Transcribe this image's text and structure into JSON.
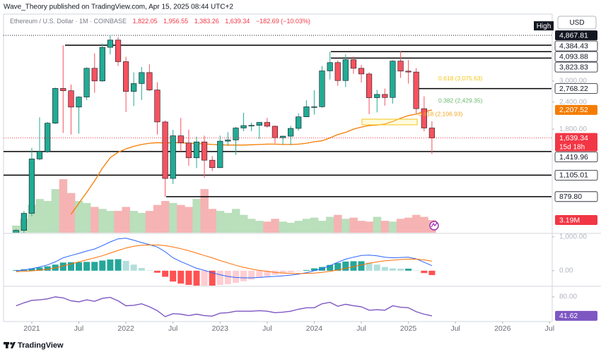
{
  "header": {
    "publisher": "Wave_Theory published on TradingView.com, Apr 15, 2025 08:44 UTC+2"
  },
  "footer": {
    "brand": "TradingView"
  },
  "chart_data": [
    {
      "type": "candlestick",
      "title": "Ethereum / U.S. Dollar · 1M · COINBASE",
      "legend": [
        "1,822.05",
        "1,956.55",
        "1,383.26",
        "1,639.34",
        "−182.69 (−10.03%)"
      ],
      "currency": "USD",
      "log": true,
      "x": [
        2020.833,
        2020.917,
        2021,
        2021.083,
        2021.167,
        2021.25,
        2021.333,
        2021.417,
        2021.5,
        2021.583,
        2021.667,
        2021.75,
        2021.833,
        2021.917,
        2022,
        2022.083,
        2022.167,
        2022.25,
        2022.333,
        2022.417,
        2022.5,
        2022.583,
        2022.667,
        2022.75,
        2022.833,
        2022.917,
        2023,
        2023.083,
        2023.167,
        2023.25,
        2023.333,
        2023.417,
        2023.5,
        2023.583,
        2023.667,
        2023.75,
        2023.833,
        2023.917,
        2024,
        2024.083,
        2024.167,
        2024.25,
        2024.333,
        2024.417,
        2024.5,
        2024.583,
        2024.667,
        2024.75,
        2024.833,
        2024.917,
        2025,
        2025.083,
        2025.167,
        2025.25
      ],
      "xlim": [
        2020.7,
        2026.52
      ],
      "xticks": [
        2021,
        {
          "value": 2021.5,
          "label": "Jul"
        },
        2022,
        {
          "value": 2022.5,
          "label": "Jul"
        },
        2023,
        {
          "value": 2023.5,
          "label": "Jul"
        },
        2024,
        {
          "value": 2024.5,
          "label": "Jul"
        },
        2025,
        {
          "value": 2025.5,
          "label": "Jul"
        },
        2026,
        {
          "value": 2026.5,
          "label": "Jul"
        }
      ],
      "ylim": [
        600,
        6100
      ],
      "yticks": [
        {
          "value": 3000,
          "label": "3,000.00"
        },
        {
          "value": 2400,
          "label": "2,400.00"
        },
        {
          "value": 1800,
          "label": "1,800.00"
        }
      ],
      "up_color": "#22ab94",
      "down_color": "#f7525f",
      "open": [
        387,
        615,
        737,
        1312,
        1419,
        1918,
        2773,
        2706,
        2275,
        2531,
        3433,
        3001,
        4288,
        4631,
        3683,
        2687,
        2920,
        3281,
        2728,
        1943,
        1067,
        1678,
        1554,
        1328,
        1572,
        1295,
        1196,
        1585,
        1605,
        1822,
        1870,
        1874,
        1934,
        1857,
        1645,
        1671,
        1815,
        2051,
        2282,
        2283,
        3340,
        3647,
        3014,
        3762,
        3433,
        3232,
        2513,
        2602,
        2518,
        3705,
        3332,
        3300,
        2237,
        1822.05
      ],
      "high": [
        622,
        755,
        1476,
        2042,
        1944,
        2798,
        4380,
        2890,
        2552,
        3470,
        4030,
        4460,
        4867.81,
        4780,
        3880,
        3290,
        3480,
        3580,
        2960,
        1975,
        1786,
        2030,
        1790,
        1664,
        1680,
        1353,
        1680,
        1743,
        1843,
        2142,
        1930,
        1940,
        2030,
        1870,
        1680,
        1865,
        2130,
        2445,
        2720,
        3520,
        4093.88,
        3730,
        3977,
        3890,
        3560,
        3290,
        2730,
        2770,
        3740,
        4107,
        3745,
        3440,
        2550,
        1956.55
      ],
      "low": [
        374,
        540,
        714,
        1293,
        1400,
        1900,
        1730,
        1700,
        1718,
        2450,
        2650,
        2970,
        3980,
        3520,
        2160,
        2300,
        2450,
        2700,
        1700,
        879.8,
        1006,
        1422,
        1220,
        1191,
        1073,
        1153,
        1191,
        1510,
        1370,
        1760,
        1760,
        1620,
        1830,
        1550,
        1530,
        1520,
        1770,
        2050,
        2100,
        2260,
        3050,
        2850,
        2810,
        3240,
        2950,
        2110,
        2150,
        2310,
        2360,
        3100,
        2920,
        2125,
        1760,
        1383.26
      ],
      "close": [
        615,
        737,
        1312,
        1419,
        1918,
        2773,
        2706,
        2275,
        2531,
        3433,
        3001,
        4288,
        4631,
        3683,
        2687,
        2920,
        3281,
        2728,
        1943,
        1067,
        1678,
        1554,
        1328,
        1572,
        1295,
        1196,
        1585,
        1605,
        1822,
        1870,
        1874,
        1934,
        1857,
        1645,
        1671,
        1815,
        2051,
        2282,
        2283,
        3340,
        3647,
        3014,
        3762,
        3433,
        3232,
        2513,
        2602,
        2518,
        3705,
        3332,
        3300,
        2237,
        1822,
        1639.34
      ],
      "ema": {
        "color": "#f57c00",
        "values": [
          null,
          null,
          null,
          null,
          null,
          null,
          null,
          730,
          820,
          920,
          1040,
          1190,
          1330,
          1410,
          1460,
          1500,
          1530,
          1550,
          1560,
          1555,
          1560,
          1560,
          1550,
          1545,
          1540,
          1530,
          1525,
          1520,
          1520,
          1520,
          1525,
          1530,
          1535,
          1535,
          1530,
          1530,
          1535,
          1550,
          1575,
          1590,
          1640,
          1700,
          1740,
          1800,
          1840,
          1870,
          1880,
          1900,
          1950,
          2020,
          2080,
          2110,
          2160,
          2207.52
        ]
      },
      "volume": {
        "ylim": [
          0,
          16000000
        ],
        "up_color": "#b9dfbb",
        "down_color": "#f6b3b3",
        "values": [
          1800000,
          3500000,
          7000000,
          8500000,
          8000000,
          11000000,
          13500000,
          10000000,
          8000000,
          7500000,
          6500000,
          6000000,
          5500000,
          5500000,
          6500000,
          5500000,
          5000000,
          5500000,
          7000000,
          8000000,
          7500000,
          7000000,
          6500000,
          8500000,
          11000000,
          6000000,
          5500000,
          5000000,
          6000000,
          4500000,
          3500000,
          3000000,
          2800000,
          3500000,
          2800000,
          2500000,
          3000000,
          3500000,
          3800000,
          3000000,
          4000000,
          4500000,
          3500000,
          3800000,
          3000000,
          2800000,
          4000000,
          3000000,
          2800000,
          3500000,
          3800000,
          4500000,
          4000000,
          3190000
        ],
        "tag": {
          "value": 3190000,
          "label": "3.19M",
          "color": "#f23645"
        }
      },
      "levels": [
        {
          "value": 4867.81,
          "label": "4,867.81",
          "marker": "High"
        },
        {
          "value": 4384.43,
          "label": "4,384.43"
        },
        {
          "value": 4093.88,
          "label": "4,093.88"
        },
        {
          "value": 3823.83,
          "label": "3,823.83"
        },
        {
          "value": 2768.22,
          "label": "2,768.22"
        },
        {
          "value": 1419.96,
          "label": "1,419.96"
        },
        {
          "value": 1105.01,
          "label": "1,105.01"
        },
        {
          "value": 879.8,
          "label": "879.80"
        }
      ],
      "price_tags": [
        {
          "value": 2207.52,
          "label": "2,207.52",
          "color": "#f57c00"
        },
        {
          "value": 1639.34,
          "label": "1,639.34",
          "countdown": "15d 18h",
          "color": "#f23645"
        }
      ],
      "fib": [
        {
          "value": 3075.63,
          "label": "0.618 (3,075.63)",
          "color": "#f5c518"
        },
        {
          "value": 2429.35,
          "label": "0.382 (2,429.35)",
          "color": "#66bb6a"
        },
        {
          "value": 2106.93,
          "label": "0.618 (2,106.93)",
          "color": "#f5a623"
        }
      ]
    },
    {
      "type": "macd",
      "ylim": [
        -440,
        1080
      ],
      "yticks": [
        {
          "value": 1000,
          "label": "1,000.00"
        },
        {
          "value": 0,
          "label": "0.00"
        }
      ],
      "macd": {
        "color": "#2962ff",
        "values": [
          -10,
          20,
          60,
          110,
          170,
          260,
          380,
          450,
          510,
          580,
          640,
          740,
          850,
          940,
          960,
          900,
          830,
          770,
          700,
          560,
          380,
          270,
          170,
          70,
          10,
          -60,
          -120,
          -170,
          -200,
          -210,
          -210,
          -200,
          -180,
          -170,
          -150,
          -130,
          -100,
          -60,
          0,
          60,
          150,
          250,
          340,
          400,
          450,
          460,
          440,
          400,
          380,
          390,
          400,
          350,
          250,
          150
        ]
      },
      "signal": {
        "color": "#ff6d00",
        "values": [
          -30,
          -20,
          -5,
          15,
          40,
          80,
          140,
          200,
          260,
          320,
          380,
          440,
          520,
          600,
          670,
          720,
          750,
          760,
          760,
          740,
          700,
          650,
          590,
          520,
          450,
          380,
          300,
          230,
          160,
          100,
          50,
          10,
          -20,
          -50,
          -70,
          -80,
          -85,
          -80,
          -70,
          -50,
          -20,
          20,
          70,
          120,
          170,
          220,
          260,
          290,
          310,
          330,
          340,
          340,
          320,
          280
        ]
      },
      "histogram": {
        "colors": [
          "#26a69a",
          "#b2dfdb",
          "#ff5252",
          "#ffcdd2"
        ],
        "values": [
          20,
          40,
          65,
          95,
          130,
          180,
          240,
          250,
          250,
          260,
          260,
          300,
          330,
          340,
          290,
          180,
          80,
          10,
          -60,
          -180,
          -320,
          -380,
          -420,
          -450,
          -440,
          -440,
          -420,
          -400,
          -360,
          -310,
          -260,
          -210,
          -160,
          -120,
          -80,
          -50,
          -15,
          20,
          70,
          110,
          170,
          230,
          270,
          280,
          280,
          240,
          180,
          110,
          70,
          60,
          60,
          10,
          -70,
          -130
        ]
      }
    },
    {
      "type": "line",
      "ylim": [
        30,
        100
      ],
      "yticks": [
        {
          "value": 80,
          "label": "80.00"
        }
      ],
      "color": "#7e57c2",
      "values": [
        62,
        68,
        73,
        74,
        76,
        80,
        78,
        72,
        70,
        74,
        71,
        77,
        79,
        72,
        62,
        63,
        66,
        60,
        52,
        40,
        46,
        45,
        42,
        45,
        42,
        41,
        47,
        48,
        51,
        51,
        51,
        52,
        51,
        48,
        49,
        51,
        55,
        58,
        58,
        66,
        69,
        61,
        65,
        62,
        60,
        53,
        54,
        53,
        62,
        59,
        58,
        50,
        45,
        41.62
      ],
      "tag": {
        "value": 41.62,
        "label": "41.62"
      }
    }
  ]
}
